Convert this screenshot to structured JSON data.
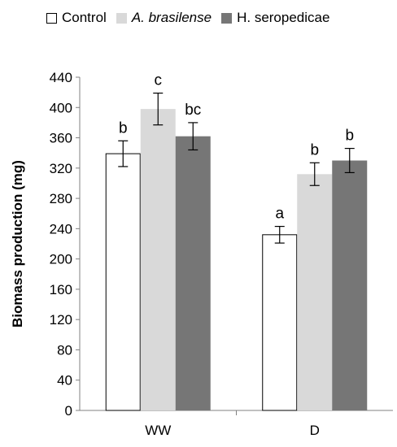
{
  "chart_data": {
    "type": "bar",
    "categories": [
      "WW",
      "D"
    ],
    "series": [
      {
        "name": "Control",
        "values": [
          339,
          232
        ],
        "errors": [
          17,
          11
        ],
        "letters": [
          "b",
          "a"
        ],
        "color": "#ffffff",
        "stroke": "#000000",
        "italic": false
      },
      {
        "name": "A. brasilense",
        "values": [
          398,
          312
        ],
        "errors": [
          21,
          15
        ],
        "letters": [
          "c",
          "b"
        ],
        "color": "#d9d9d9",
        "stroke": "#d9d9d9",
        "italic": true
      },
      {
        "name": "H. seropedicae",
        "values": [
          362,
          330
        ],
        "errors": [
          18,
          16
        ],
        "letters": [
          "bc",
          "b"
        ],
        "color": "#767676",
        "stroke": "#767676",
        "italic": false
      }
    ],
    "ylabel": "Biomass production (mg)",
    "xlabel": "",
    "title": "",
    "ylim": [
      0,
      440
    ],
    "yticks": [
      0,
      40,
      80,
      120,
      160,
      200,
      240,
      280,
      320,
      360,
      400,
      440
    ],
    "grid": false,
    "legend_position": "top"
  }
}
